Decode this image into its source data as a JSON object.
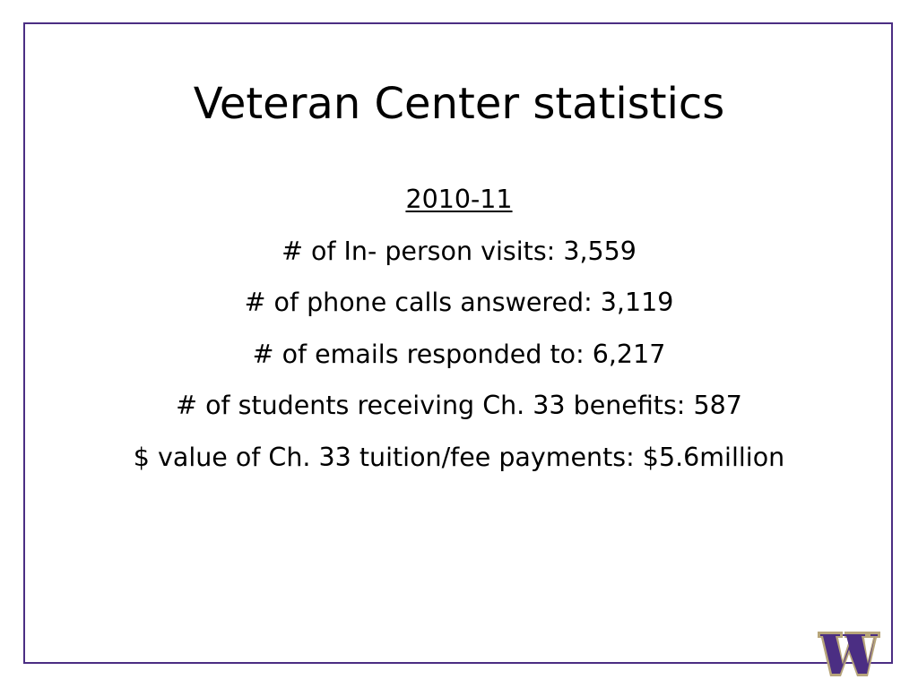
{
  "slide": {
    "title": "Veteran Center statistics",
    "year": "2010-11",
    "stats": [
      "# of In- person visits:  3,559",
      "# of phone calls answered:  3,119",
      "# of emails responded to:  6,217",
      "# of students receiving Ch. 33 benefits:  587",
      "$ value of Ch. 33 tuition/fee payments:  $5.6million"
    ]
  },
  "logo": {
    "icon": "uw-w-logo-icon",
    "letter": "W",
    "color": "#4b2e83",
    "outline": "#b7a57a"
  },
  "colors": {
    "frame": "#4b2e83",
    "text": "#000000",
    "background": "#ffffff"
  }
}
